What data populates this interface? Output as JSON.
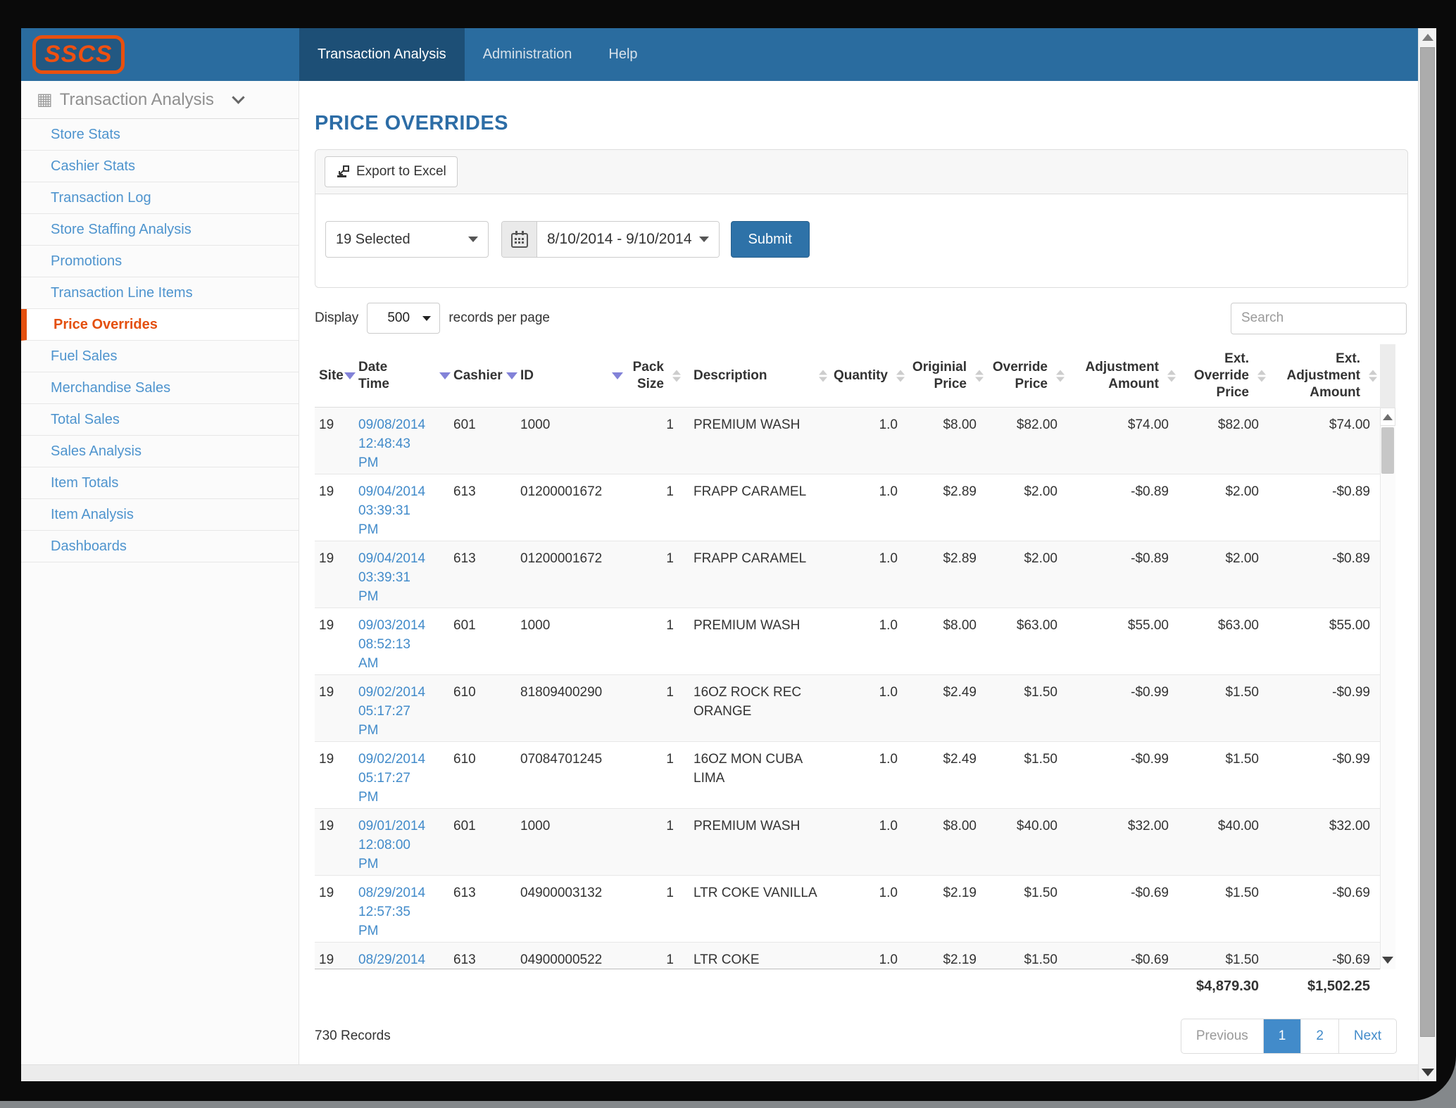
{
  "brand": {
    "logo_text": "SSCS"
  },
  "navbar": {
    "tabs": [
      {
        "label": "Transaction Analysis",
        "active": true
      },
      {
        "label": "Administration",
        "active": false
      },
      {
        "label": "Help",
        "active": false
      }
    ]
  },
  "sidebar": {
    "header": "Transaction Analysis",
    "items": [
      {
        "label": "Store Stats",
        "active": false
      },
      {
        "label": "Cashier Stats",
        "active": false
      },
      {
        "label": "Transaction Log",
        "active": false
      },
      {
        "label": "Store Staffing Analysis",
        "active": false
      },
      {
        "label": "Promotions",
        "active": false
      },
      {
        "label": "Transaction Line Items",
        "active": false
      },
      {
        "label": "Price Overrides",
        "active": true
      },
      {
        "label": "Fuel Sales",
        "active": false
      },
      {
        "label": "Merchandise Sales",
        "active": false
      },
      {
        "label": "Total Sales",
        "active": false
      },
      {
        "label": "Sales Analysis",
        "active": false
      },
      {
        "label": "Item Totals",
        "active": false
      },
      {
        "label": "Item Analysis",
        "active": false
      },
      {
        "label": "Dashboards",
        "active": false
      }
    ]
  },
  "main": {
    "title": "PRICE OVERRIDES",
    "toolbar": {
      "export_label": "Export to Excel"
    },
    "filters": {
      "sites_selected": "19 Selected",
      "date_range": "8/10/2014 - 9/10/2014",
      "submit_label": "Submit"
    },
    "display": {
      "prefix": "Display",
      "page_size": "500",
      "suffix": "records per page"
    },
    "search": {
      "placeholder": "Search"
    },
    "table": {
      "columns": [
        {
          "label": "Site",
          "sort": "down"
        },
        {
          "label": "Date\nTime",
          "sort": "down"
        },
        {
          "label": "Cashier",
          "sort": "down"
        },
        {
          "label": "ID",
          "sort": "down"
        },
        {
          "label": "Pack\nSize",
          "sort": "both"
        },
        {
          "label": "Description",
          "sort": "both"
        },
        {
          "label": "Quantity",
          "sort": "both"
        },
        {
          "label": "Originial\nPrice",
          "sort": "both"
        },
        {
          "label": "Override\nPrice",
          "sort": "both"
        },
        {
          "label": "Adjustment\nAmount",
          "sort": "both"
        },
        {
          "label": "Ext.\nOverride\nPrice",
          "sort": "both"
        },
        {
          "label": "Ext.\nAdjustment\nAmount",
          "sort": "both"
        }
      ],
      "rows": [
        {
          "site": "19",
          "date": "09/08/2014",
          "time": "12:48:43",
          "meridiem": "PM",
          "cashier": "601",
          "id": "1000",
          "pack_size": "1",
          "description": "PREMIUM WASH",
          "quantity": "1.0",
          "original_price": "$8.00",
          "override_price": "$82.00",
          "adjustment_amount": "$74.00",
          "ext_override_price": "$82.00",
          "ext_adjustment_amount": "$74.00"
        },
        {
          "site": "19",
          "date": "09/04/2014",
          "time": "03:39:31",
          "meridiem": "PM",
          "cashier": "613",
          "id": "01200001672",
          "pack_size": "1",
          "description": "FRAPP CARAMEL",
          "quantity": "1.0",
          "original_price": "$2.89",
          "override_price": "$2.00",
          "adjustment_amount": "-$0.89",
          "ext_override_price": "$2.00",
          "ext_adjustment_amount": "-$0.89"
        },
        {
          "site": "19",
          "date": "09/04/2014",
          "time": "03:39:31",
          "meridiem": "PM",
          "cashier": "613",
          "id": "01200001672",
          "pack_size": "1",
          "description": "FRAPP CARAMEL",
          "quantity": "1.0",
          "original_price": "$2.89",
          "override_price": "$2.00",
          "adjustment_amount": "-$0.89",
          "ext_override_price": "$2.00",
          "ext_adjustment_amount": "-$0.89"
        },
        {
          "site": "19",
          "date": "09/03/2014",
          "time": "08:52:13",
          "meridiem": "AM",
          "cashier": "601",
          "id": "1000",
          "pack_size": "1",
          "description": "PREMIUM WASH",
          "quantity": "1.0",
          "original_price": "$8.00",
          "override_price": "$63.00",
          "adjustment_amount": "$55.00",
          "ext_override_price": "$63.00",
          "ext_adjustment_amount": "$55.00"
        },
        {
          "site": "19",
          "date": "09/02/2014",
          "time": "05:17:27",
          "meridiem": "PM",
          "cashier": "610",
          "id": "81809400290",
          "pack_size": "1",
          "description": "16OZ ROCK REC ORANGE",
          "quantity": "1.0",
          "original_price": "$2.49",
          "override_price": "$1.50",
          "adjustment_amount": "-$0.99",
          "ext_override_price": "$1.50",
          "ext_adjustment_amount": "-$0.99"
        },
        {
          "site": "19",
          "date": "09/02/2014",
          "time": "05:17:27",
          "meridiem": "PM",
          "cashier": "610",
          "id": "07084701245",
          "pack_size": "1",
          "description": "16OZ MON CUBA LIMA",
          "quantity": "1.0",
          "original_price": "$2.49",
          "override_price": "$1.50",
          "adjustment_amount": "-$0.99",
          "ext_override_price": "$1.50",
          "ext_adjustment_amount": "-$0.99"
        },
        {
          "site": "19",
          "date": "09/01/2014",
          "time": "12:08:00",
          "meridiem": "PM",
          "cashier": "601",
          "id": "1000",
          "pack_size": "1",
          "description": "PREMIUM WASH",
          "quantity": "1.0",
          "original_price": "$8.00",
          "override_price": "$40.00",
          "adjustment_amount": "$32.00",
          "ext_override_price": "$40.00",
          "ext_adjustment_amount": "$32.00"
        },
        {
          "site": "19",
          "date": "08/29/2014",
          "time": "12:57:35",
          "meridiem": "PM",
          "cashier": "613",
          "id": "04900003132",
          "pack_size": "1",
          "description": "LTR COKE VANILLA",
          "quantity": "1.0",
          "original_price": "$2.19",
          "override_price": "$1.50",
          "adjustment_amount": "-$0.69",
          "ext_override_price": "$1.50",
          "ext_adjustment_amount": "-$0.69"
        },
        {
          "site": "19",
          "date": "08/29/2014",
          "time": "",
          "meridiem": "",
          "cashier": "613",
          "id": "04900000522",
          "pack_size": "1",
          "description": "LTR COKE",
          "quantity": "1.0",
          "original_price": "$2.19",
          "override_price": "$1.50",
          "adjustment_amount": "-$0.69",
          "ext_override_price": "$1.50",
          "ext_adjustment_amount": "-$0.69"
        }
      ],
      "totals": {
        "ext_override_price": "$4,879.30",
        "ext_adjustment_amount": "$1,502.25"
      }
    },
    "footer": {
      "records_label": "730 Records",
      "pagination": [
        "Previous",
        "1",
        "2",
        "Next"
      ],
      "active_page": "1"
    }
  },
  "colors": {
    "navbar": "#2a6c9f",
    "navbar_active": "#1d4f76",
    "brand_orange": "#e8500f",
    "link_blue": "#428bca",
    "title_blue": "#2d6da6",
    "submit_blue": "#2e72a8",
    "stripe": "#f9f9f9",
    "sorted_arrow": "#8282d8"
  }
}
